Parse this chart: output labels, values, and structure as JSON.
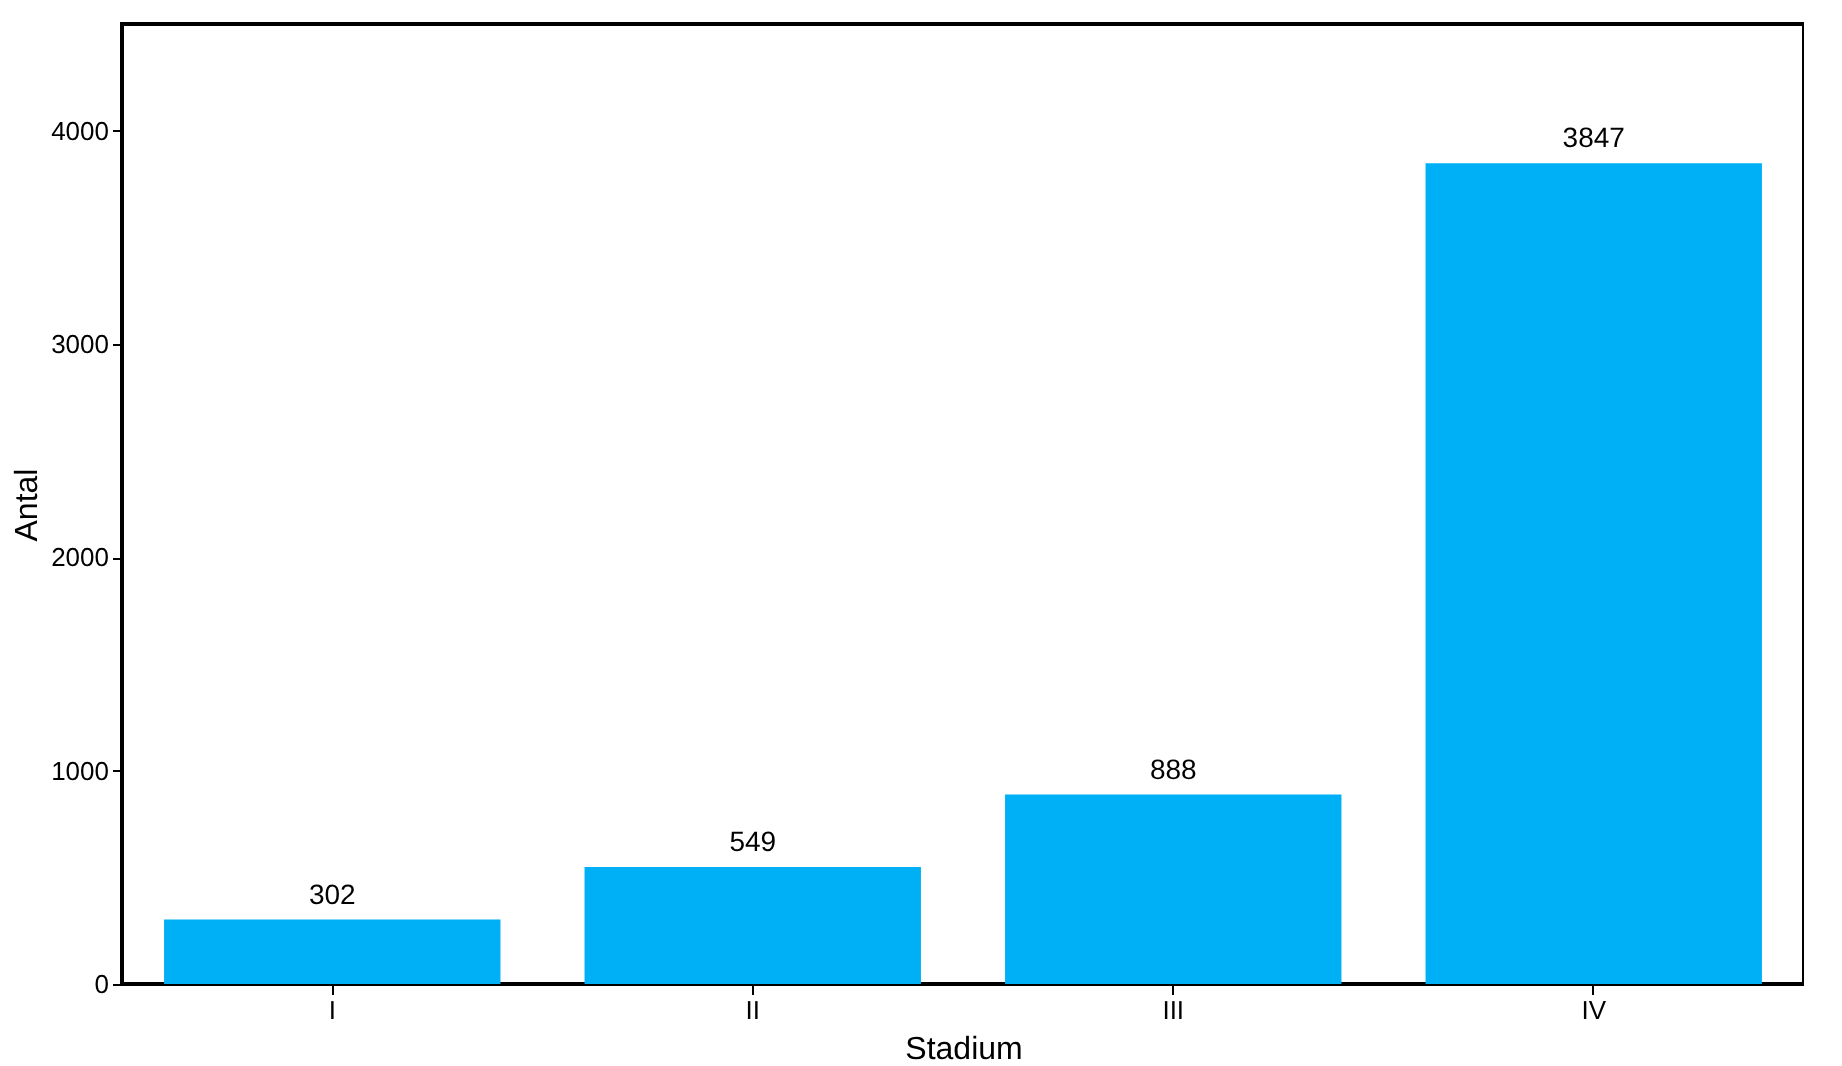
{
  "chart_data": {
    "type": "bar",
    "xlabel": "Stadium",
    "ylabel": "Antal",
    "categories": [
      "I",
      "II",
      "III",
      "IV"
    ],
    "values": [
      302,
      549,
      888,
      3847
    ],
    "color": "#00b0f6",
    "ylim": [
      0,
      4500
    ],
    "yticks": [
      0,
      1000,
      2000,
      3000,
      4000
    ],
    "grid": false,
    "data_labels": true
  }
}
